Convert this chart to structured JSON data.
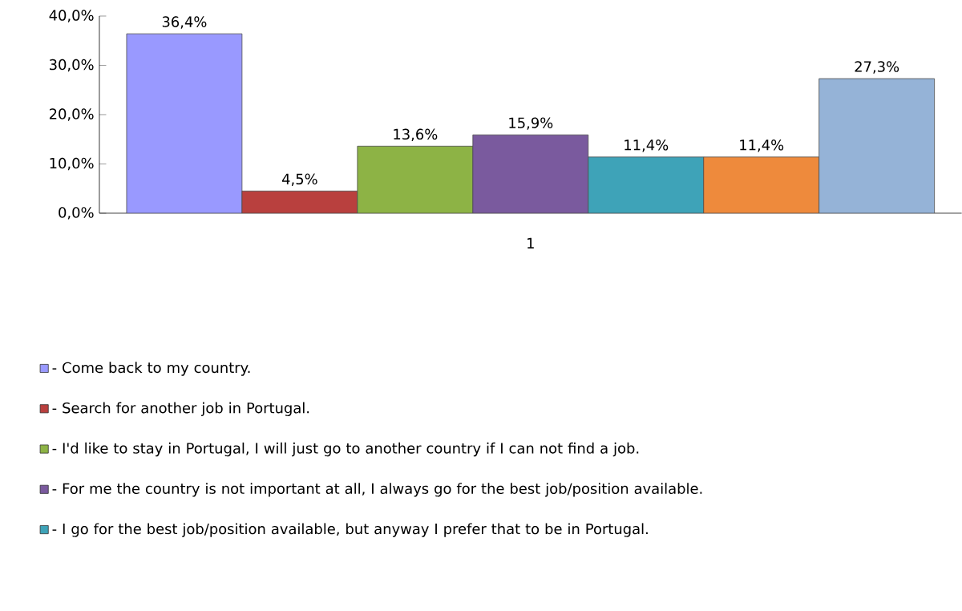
{
  "chart_data": {
    "type": "bar",
    "categories": [
      "1"
    ],
    "series": [
      {
        "name": "- Come back to my country.",
        "color": "#9999ff",
        "values": [
          36.4
        ],
        "value_labels": [
          "36,4%"
        ]
      },
      {
        "name": "- Search for another job in Portugal.",
        "color": "#b9403e",
        "values": [
          4.5
        ],
        "value_labels": [
          "4,5%"
        ]
      },
      {
        "name": "- I'd like to stay in Portugal, I will just go to another country if I can not find a job.",
        "color": "#8db345",
        "values": [
          13.6
        ],
        "value_labels": [
          "13,6%"
        ]
      },
      {
        "name": "- For me the country is not important at all, I always go for the best job/position available.",
        "color": "#7a5a9e",
        "values": [
          15.9
        ],
        "value_labels": [
          "15,9%"
        ]
      },
      {
        "name": "- I go for the best job/position available, but anyway I prefer that to be in Portugal.",
        "color": "#3ea3b8",
        "values": [
          11.4
        ],
        "value_labels": [
          "11,4%"
        ]
      },
      {
        "color": "#ee8a3c",
        "values": [
          11.4
        ],
        "value_labels": [
          "11,4%"
        ]
      },
      {
        "color": "#95b3d7",
        "values": [
          27.3
        ],
        "value_labels": [
          "27,3%"
        ]
      }
    ],
    "ylim": [
      0,
      40
    ],
    "yticks": [
      {
        "value": 0,
        "label": "0,0%"
      },
      {
        "value": 10,
        "label": "10,0%"
      },
      {
        "value": 20,
        "label": "20,0%"
      },
      {
        "value": 30,
        "label": "30,0%"
      },
      {
        "value": 40,
        "label": "40,0%"
      }
    ],
    "grid": false,
    "legend": "bottom"
  }
}
